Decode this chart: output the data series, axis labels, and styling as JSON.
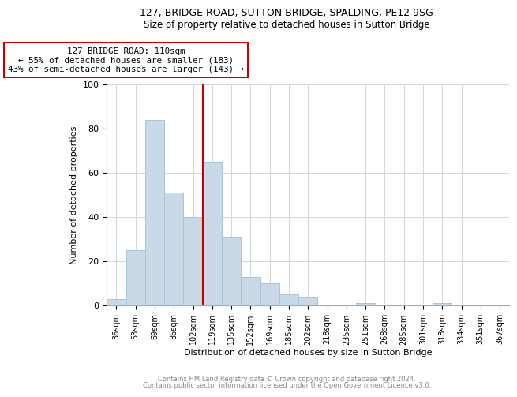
{
  "title1": "127, BRIDGE ROAD, SUTTON BRIDGE, SPALDING, PE12 9SG",
  "title2": "Size of property relative to detached houses in Sutton Bridge",
  "xlabel": "Distribution of detached houses by size in Sutton Bridge",
  "ylabel": "Number of detached properties",
  "categories": [
    "36sqm",
    "53sqm",
    "69sqm",
    "86sqm",
    "102sqm",
    "119sqm",
    "135sqm",
    "152sqm",
    "169sqm",
    "185sqm",
    "202sqm",
    "218sqm",
    "235sqm",
    "251sqm",
    "268sqm",
    "285sqm",
    "301sqm",
    "318sqm",
    "334sqm",
    "351sqm",
    "367sqm"
  ],
  "values": [
    3,
    25,
    84,
    51,
    40,
    65,
    31,
    13,
    10,
    5,
    4,
    0,
    0,
    1,
    0,
    0,
    0,
    1,
    0,
    0,
    0
  ],
  "bar_color": "#c9d9e8",
  "bar_edge_color": "#a8c4d8",
  "ref_line_color": "#cc0000",
  "annotation_text": "127 BRIDGE ROAD: 110sqm\n← 55% of detached houses are smaller (183)\n43% of semi-detached houses are larger (143) →",
  "annotation_box_color": "#cc0000",
  "ylim": [
    0,
    100
  ],
  "yticks": [
    0,
    20,
    40,
    60,
    80,
    100
  ],
  "footer1": "Contains HM Land Registry data © Crown copyright and database right 2024.",
  "footer2": "Contains public sector information licensed under the Open Government Licence v3.0.",
  "title1_fontsize": 9,
  "title2_fontsize": 8.5,
  "bar_width": 1.0
}
